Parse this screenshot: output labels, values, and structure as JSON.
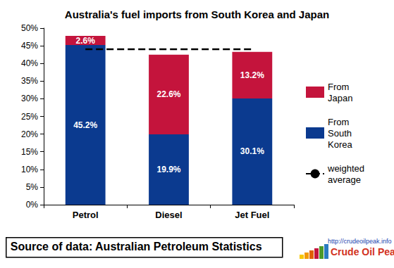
{
  "chart_data": {
    "type": "bar",
    "title": "Australia's fuel imports from South Korea and Japan",
    "categories": [
      "Petrol",
      "Diesel",
      "Jet Fuel"
    ],
    "series": [
      {
        "name": "From South Korea",
        "type": "bar",
        "color": "#0b3a8f",
        "values": [
          45.2,
          19.9,
          30.1
        ],
        "value_labels": [
          "45.2%",
          "19.9%",
          "30.1%"
        ]
      },
      {
        "name": "From Japan",
        "type": "bar",
        "color": "#c4143c",
        "values": [
          2.6,
          22.6,
          13.2
        ],
        "value_labels": [
          "2.6%",
          "22.6%",
          "13.2%"
        ]
      },
      {
        "name": "weighted average",
        "type": "line",
        "color": "#000000",
        "line_style": "dashed",
        "values": [
          44,
          44,
          44
        ]
      }
    ],
    "stacked": true,
    "data_labels": true,
    "grid": false,
    "legend": "right",
    "ylim": [
      0,
      50
    ],
    "yticks": [
      {
        "value": 0,
        "label": "0%"
      },
      {
        "value": 5,
        "label": "5%"
      },
      {
        "value": 10,
        "label": "10%"
      },
      {
        "value": 15,
        "label": "15%"
      },
      {
        "value": 20,
        "label": "20%"
      },
      {
        "value": 25,
        "label": "25%"
      },
      {
        "value": 30,
        "label": "30%"
      },
      {
        "value": 35,
        "label": "35%"
      },
      {
        "value": 40,
        "label": "40%"
      },
      {
        "value": 45,
        "label": "45%"
      },
      {
        "value": 50,
        "label": "50%"
      }
    ],
    "annotations": [
      "Source of data: Australian Petroleum Statistics",
      "http://crudeoilpeak.info",
      "Crude Oil Peak"
    ]
  }
}
